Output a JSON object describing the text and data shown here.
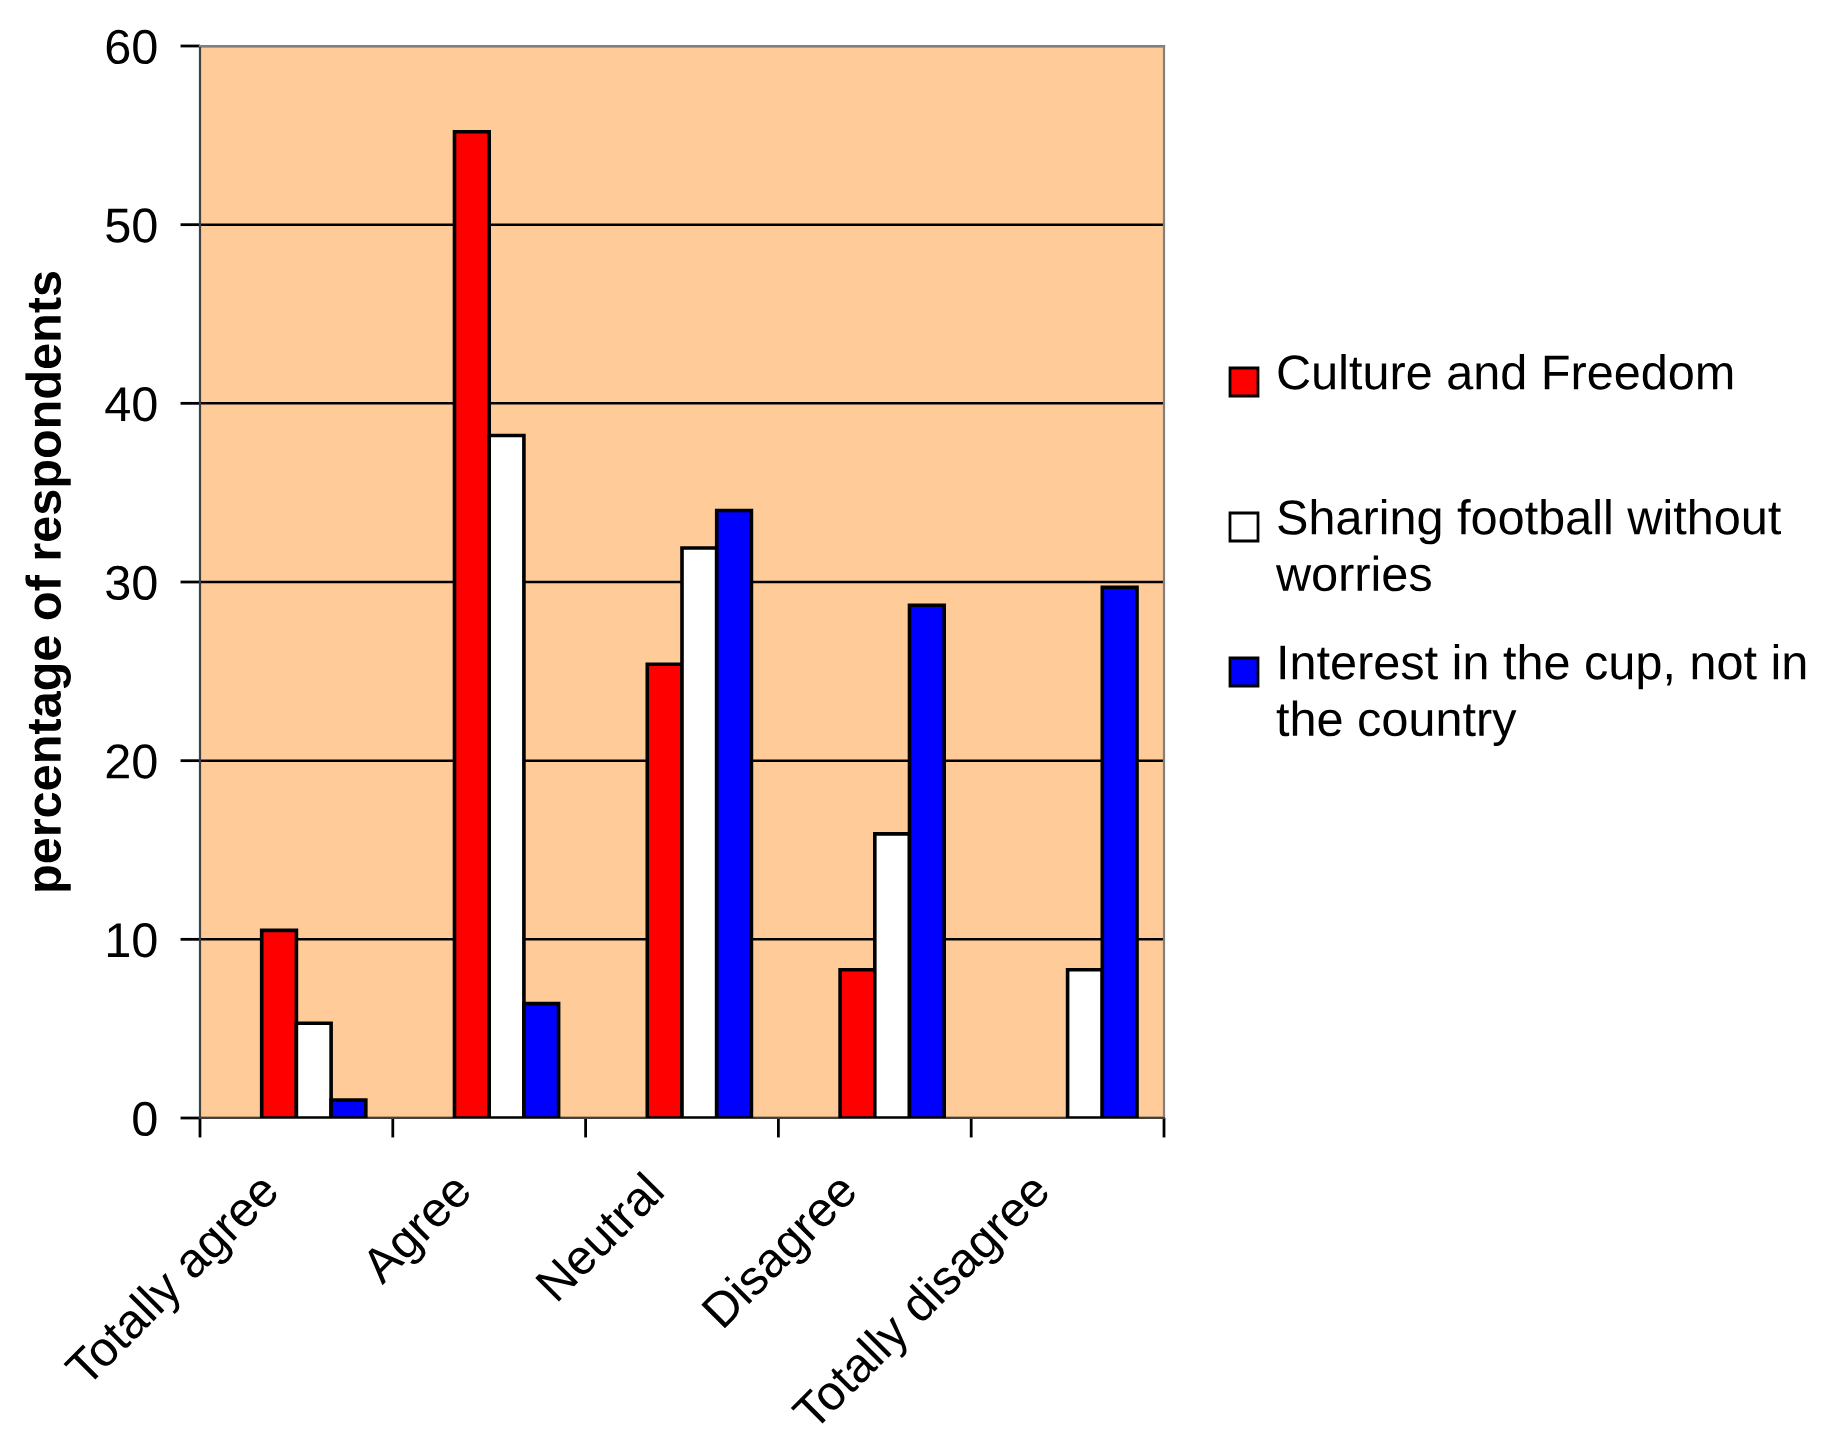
{
  "chart_data": {
    "type": "bar",
    "categories": [
      "Totally agree",
      "Agree",
      "Neutral",
      "Disagree",
      "Totally disagree"
    ],
    "series": [
      {
        "name": "Culture and Freedom",
        "color": "#ff0000",
        "values": [
          10.5,
          55.2,
          25.4,
          8.3,
          null
        ]
      },
      {
        "name": "Sharing football without worries",
        "color": "#ffffff",
        "values": [
          5.3,
          38.2,
          31.9,
          15.9,
          8.3
        ]
      },
      {
        "name": "Interest in the cup, not in the country",
        "color": "#0000ff",
        "values": [
          1.0,
          6.4,
          34.0,
          28.7,
          29.7
        ]
      }
    ],
    "ylabel": "percentage of respondents",
    "ylim": [
      0,
      60
    ],
    "yticks": [
      0,
      10,
      20,
      30,
      40,
      50,
      60
    ],
    "grid": "y",
    "legend": "right"
  }
}
